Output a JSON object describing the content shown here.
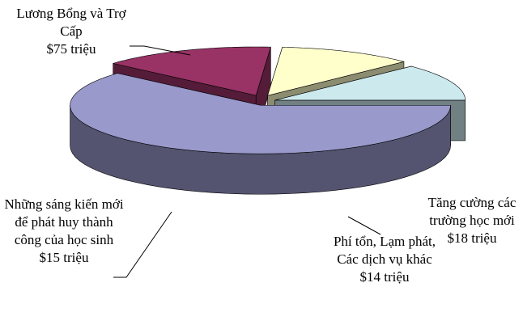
{
  "chart_data": {
    "type": "pie3d",
    "categories": [
      "Lương Bổng và Trợ Cấp",
      "Tăng cường các trường học mới",
      "Phí tổn, Lạm phát, Các dịch vụ khác",
      "Những sáng kiến mới để phát huy thành công của học sinh"
    ],
    "values": [
      75,
      18,
      14,
      15
    ],
    "value_labels": [
      "$75 triệu",
      "$18 triệu",
      "$14 triệu",
      "$15 triệu"
    ],
    "colors": [
      "#9999cc",
      "#993366",
      "#ffffcc",
      "#cce9ee"
    ]
  }
}
